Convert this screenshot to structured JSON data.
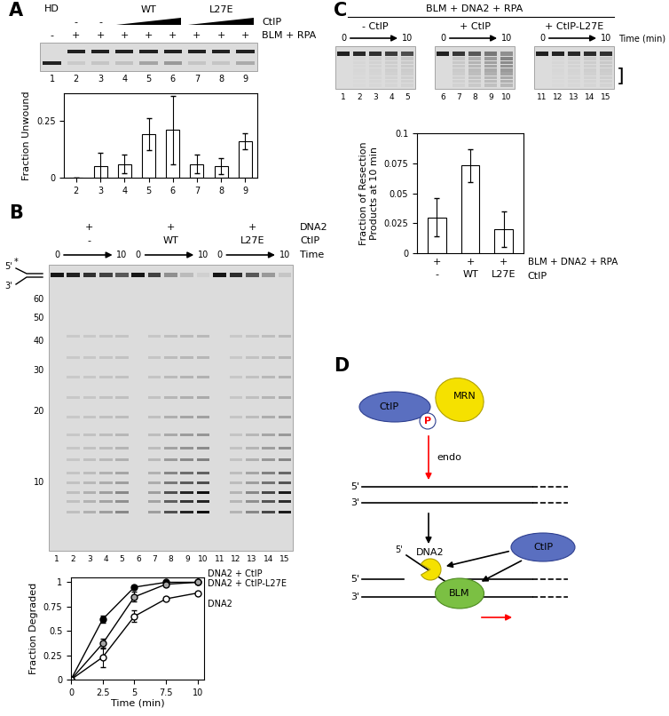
{
  "panel_labels": [
    "A",
    "B",
    "C",
    "D"
  ],
  "gels": {
    "A": {
      "top_label": {
        "text": "HD",
        "lane": 1
      },
      "groups": [
        {
          "label": "WT",
          "lanes": [
            4,
            6
          ]
        },
        {
          "label": "L27E",
          "lanes": [
            7,
            9
          ]
        }
      ],
      "rows": [
        {
          "label": "CtIP",
          "marks": [
            null,
            "-",
            "-",
            null,
            null,
            null,
            null,
            null,
            null
          ]
        },
        {
          "label": "BLM + RPA",
          "marks": [
            "-",
            "+",
            "+",
            "+",
            "+",
            "+",
            "+",
            "+",
            "+"
          ]
        }
      ],
      "lane_numbers": [
        1,
        2,
        3,
        4,
        5,
        6,
        7,
        8,
        9
      ]
    },
    "B": {
      "substrate": {
        "top": "5'",
        "bottom": "3'",
        "label_mark": "*"
      },
      "size_markers": [
        60,
        50,
        40,
        30,
        20,
        10
      ],
      "rows": [
        {
          "label": "DNA2",
          "marks": [
            "+",
            "+",
            "+"
          ]
        },
        {
          "label": "CtIP",
          "marks": [
            "-",
            "WT",
            "L27E"
          ]
        }
      ],
      "time": {
        "label": "Time",
        "start": 0,
        "end": 10
      },
      "lane_numbers": [
        1,
        2,
        3,
        4,
        5,
        6,
        7,
        8,
        9,
        10,
        11,
        12,
        13,
        14,
        15
      ]
    },
    "C": {
      "title": "BLM + DNA2 + RPA",
      "panels": [
        "- CtIP",
        "+ CtIP",
        "+ CtIP-L27E"
      ],
      "time": {
        "label": "Time (min)",
        "start": 0,
        "end": 10
      },
      "lane_numbers": [
        1,
        2,
        3,
        4,
        5,
        6,
        7,
        8,
        9,
        10,
        11,
        12,
        13,
        14,
        15
      ],
      "bracket": "]"
    }
  },
  "chart_data": [
    {
      "type": "bar",
      "y_label": "Fraction Unwound",
      "categories": [
        "2",
        "3",
        "4",
        "5",
        "6",
        "7",
        "8",
        "9"
      ],
      "values": [
        0,
        0.05,
        0.06,
        0.19,
        0.21,
        0.06,
        0.05,
        0.16
      ],
      "errors": [
        0,
        0.06,
        0.04,
        0.07,
        0.15,
        0.04,
        0.035,
        0.035
      ],
      "color": "#ffffff",
      "ylim": [
        0,
        0.37
      ],
      "yticks": [
        0,
        0.25
      ]
    },
    {
      "type": "line",
      "x_label": "Time (min)",
      "y_label": "Fraction Degraded",
      "x": [
        0,
        2.5,
        5,
        7.5,
        10
      ],
      "xlim": [
        0,
        10.5
      ],
      "xticks": [
        0,
        2.5,
        5,
        7.5,
        10
      ],
      "ylim": [
        0,
        1.05
      ],
      "yticks": [
        0,
        0.25,
        0.5,
        0.75,
        1
      ],
      "series": [
        {
          "name": "DNA2 + CtIP",
          "color": "#000000",
          "marker": "o",
          "values": [
            0,
            0.62,
            0.95,
            1,
            1
          ],
          "errors": [
            0,
            0.04,
            0.02,
            0.01,
            0.01
          ]
        },
        {
          "name": "DNA2 + CtIP-L27E",
          "color": "#a6a6a6",
          "marker": "o",
          "values": [
            0,
            0.37,
            0.85,
            0.98,
            1
          ],
          "errors": [
            0,
            0.05,
            0.05,
            0.02,
            0.01
          ]
        },
        {
          "name": "DNA2",
          "color": "#ffffff",
          "marker": "o",
          "values": [
            0,
            0.23,
            0.65,
            0.83,
            0.89
          ],
          "errors": [
            0,
            0.1,
            0.06,
            0.02,
            0.01
          ]
        }
      ]
    },
    {
      "type": "bar",
      "y_label": "Fraction of Resection\nProducts at 10 min",
      "categories": [
        "-",
        "WT",
        "L27E"
      ],
      "category_label": "CtIP",
      "condition_row": {
        "label": "BLM + DNA2 + RPA",
        "marks": [
          "+",
          "+",
          "+"
        ]
      },
      "values": [
        0.03,
        0.073,
        0.02
      ],
      "errors": [
        0.016,
        0.014,
        0.015
      ],
      "color": "#ffffff",
      "ylim": [
        0,
        0.1
      ],
      "yticks": [
        0,
        0.025,
        0.05,
        0.075,
        0.1
      ]
    }
  ],
  "diagram": {
    "first_complex": {
      "ctip": "CtIP",
      "phospho": "P",
      "mrn": "MRN"
    },
    "cut": "endo",
    "ends": {
      "top": "5'",
      "bottom": "3'"
    },
    "resection": {
      "dna2": "DNA2",
      "flap_end": "5'",
      "ctip": "CtIP",
      "blm": "BLM"
    }
  }
}
